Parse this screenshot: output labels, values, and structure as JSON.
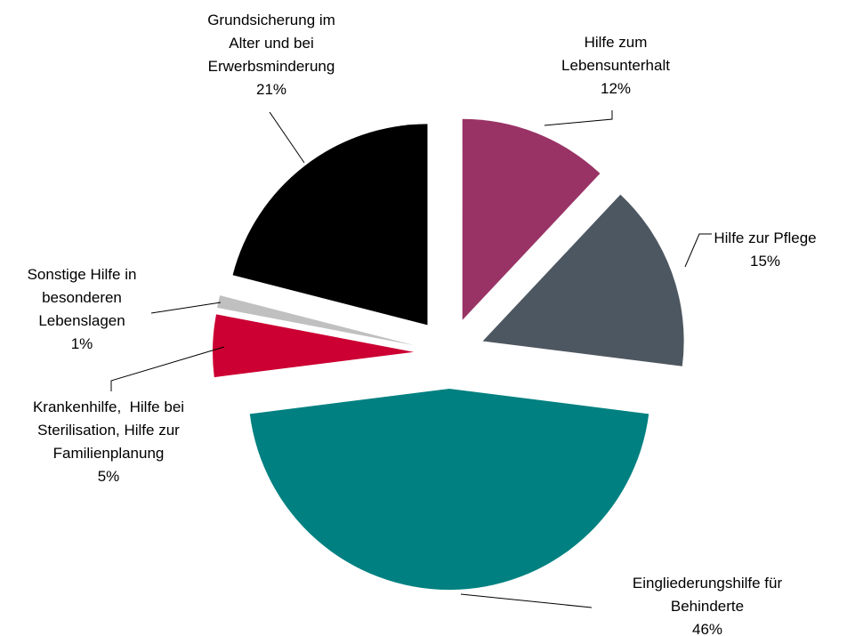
{
  "chart_data": {
    "type": "pie",
    "categories": [
      "Hilfe zum\nLebensunterhalt",
      "Hilfe zur Pflege",
      "Eingliederungshilfe für\nBehinderte",
      "Krankenhilfe,  Hilfe bei\nSterilisation, Hilfe zur\nFamilienplanung",
      "Sonstige Hilfe in\nbesonderen\nLebenslagen",
      "Grundsicherung im\nAlter und bei\nErwerbsminderung"
    ],
    "values": [
      12,
      15,
      46,
      5,
      1,
      21
    ],
    "value_labels": [
      "12%",
      "15%",
      "46%",
      "5%",
      "1%",
      "21%"
    ],
    "colors": [
      "#993366",
      "#4d5761",
      "#008080",
      "#cc0033",
      "#c0c0c0",
      "#000000"
    ]
  }
}
